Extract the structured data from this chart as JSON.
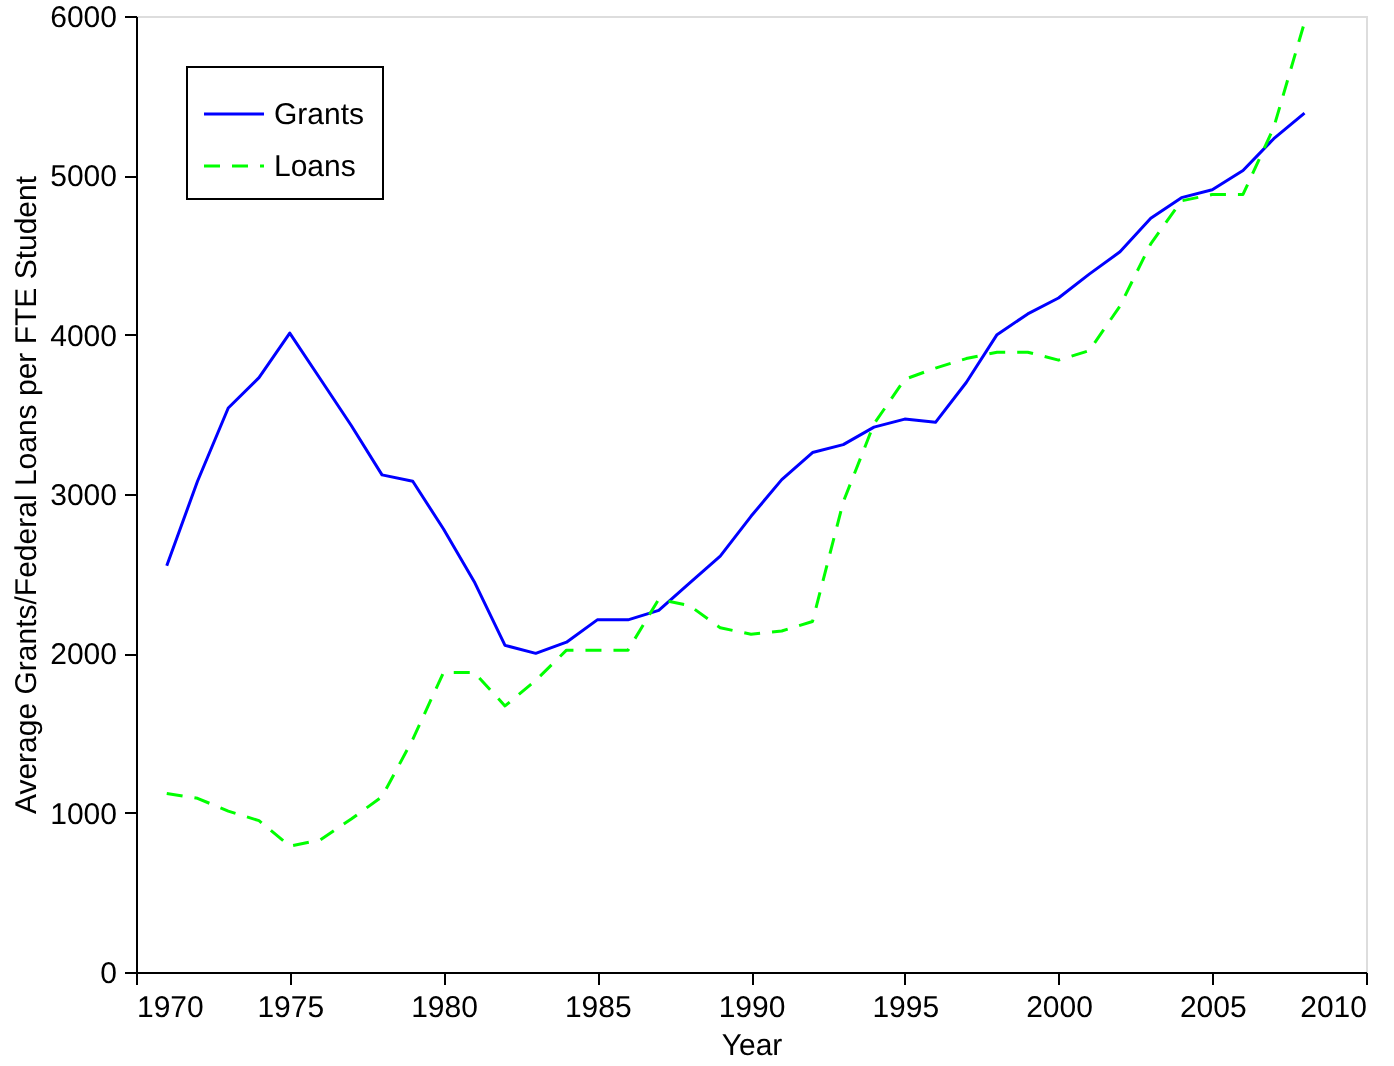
{
  "chart_data": {
    "type": "line",
    "xlabel": "Year",
    "ylabel": "Average Grants/Federal Loans per FTE Student",
    "x": [
      1971,
      1972,
      1973,
      1974,
      1975,
      1976,
      1977,
      1978,
      1979,
      1980,
      1981,
      1982,
      1983,
      1984,
      1985,
      1986,
      1987,
      1988,
      1989,
      1990,
      1991,
      1992,
      1993,
      1994,
      1995,
      1996,
      1997,
      1998,
      1999,
      2000,
      2001,
      2002,
      2003,
      2004,
      2005,
      2006,
      2007,
      2008
    ],
    "series": [
      {
        "name": "Grants",
        "color": "#0000ff",
        "line_style": "solid",
        "values": [
          2550,
          3080,
          3540,
          3730,
          4010,
          3720,
          3430,
          3120,
          3080,
          2780,
          2450,
          2050,
          2000,
          2070,
          2210,
          2210,
          2270,
          2440,
          2610,
          2860,
          3090,
          3260,
          3310,
          3420,
          3470,
          3450,
          3700,
          4000,
          4130,
          4230,
          4380,
          4520,
          4730,
          4860,
          4910,
          5030,
          5230,
          5390
        ]
      },
      {
        "name": "Loans",
        "color": "#00ff00",
        "line_style": "dashed",
        "values": [
          1120,
          1090,
          1010,
          950,
          790,
          830,
          960,
          1100,
          1460,
          1880,
          1880,
          1670,
          1830,
          2020,
          2020,
          2020,
          2340,
          2300,
          2160,
          2120,
          2140,
          2200,
          2950,
          3440,
          3720,
          3790,
          3850,
          3890,
          3890,
          3840,
          3900,
          4180,
          4570,
          4840,
          4880,
          4880,
          5300,
          5960
        ]
      }
    ],
    "xlim": [
      1970,
      2010
    ],
    "xticks": [
      1970,
      1975,
      1980,
      1985,
      1990,
      1995,
      2000,
      2005,
      2010
    ],
    "ylim": [
      0,
      6000
    ],
    "yticks": [
      0,
      1000,
      2000,
      3000,
      4000,
      5000,
      6000
    ],
    "legend": "top left",
    "grid": false,
    "marker": "none"
  }
}
